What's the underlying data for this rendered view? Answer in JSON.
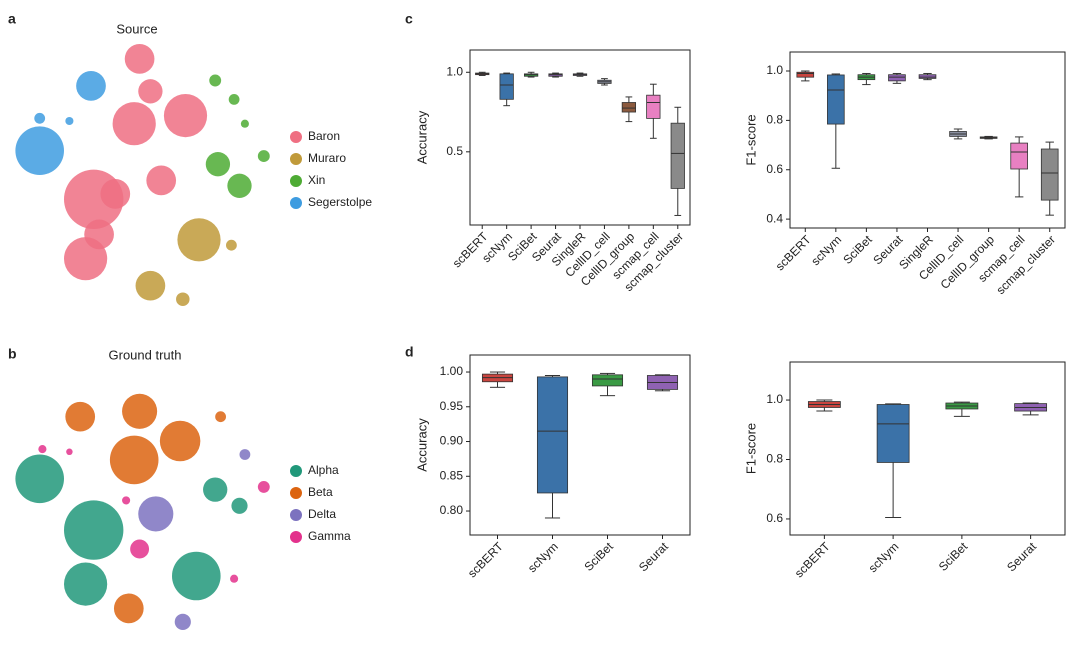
{
  "chart_data": [
    {
      "type": "scatter",
      "label": "a",
      "title": "Source",
      "xlim": [
        0,
        100
      ],
      "ylim": [
        0,
        100
      ],
      "series": [
        {
          "name": "Baron",
          "color": "#ef6f82",
          "x": [
            48,
            46,
            65,
            52,
            31,
            28,
            33,
            56,
            39
          ],
          "y": [
            93,
            69,
            72,
            81,
            41,
            19,
            28,
            48,
            43
          ],
          "sizes": [
            5.5,
            8,
            8,
            4.5,
            11,
            8,
            5.5,
            5.5,
            5.5
          ]
        },
        {
          "name": "Muraro",
          "color": "#c09a3a",
          "x": [
            70,
            52,
            64,
            82
          ],
          "y": [
            26,
            9,
            4,
            24
          ],
          "sizes": [
            8,
            5.5,
            2.5,
            2
          ]
        },
        {
          "name": "Xin",
          "color": "#4eab34",
          "x": [
            76,
            83,
            77,
            85,
            94,
            87
          ],
          "y": [
            85,
            78,
            54,
            46,
            57,
            69
          ],
          "sizes": [
            2.2,
            2,
            4.5,
            4.5,
            2.2,
            1.5
          ]
        },
        {
          "name": "Segerstolpe",
          "color": "#3e9ce0",
          "x": [
            11,
            30,
            11,
            22
          ],
          "y": [
            59,
            83,
            71,
            70
          ],
          "sizes": [
            9,
            5.5,
            2,
            1.5
          ]
        }
      ]
    },
    {
      "type": "scatter",
      "label": "b",
      "title": "Ground truth",
      "xlim": [
        0,
        100
      ],
      "ylim": [
        0,
        100
      ],
      "series": [
        {
          "name": "Alpha",
          "color": "#21987a",
          "x": [
            11,
            31,
            28,
            69,
            76,
            85
          ],
          "y": [
            56,
            37,
            17,
            20,
            52,
            46
          ],
          "sizes": [
            9,
            11,
            8,
            9,
            4.5,
            3
          ]
        },
        {
          "name": "Beta",
          "color": "#dc6410",
          "x": [
            26,
            48,
            46,
            63,
            78,
            44
          ],
          "y": [
            79,
            81,
            63,
            70,
            79,
            8
          ],
          "sizes": [
            5.5,
            6.5,
            9,
            7.5,
            2,
            5.5
          ]
        },
        {
          "name": "Delta",
          "color": "#7c72bf",
          "x": [
            54,
            87,
            64
          ],
          "y": [
            43,
            65,
            3
          ],
          "sizes": [
            6.5,
            2,
            3
          ]
        },
        {
          "name": "Gamma",
          "color": "#e3318c",
          "x": [
            48,
            94,
            12,
            83,
            43,
            22
          ],
          "y": [
            30,
            53,
            67,
            19,
            48,
            66
          ],
          "sizes": [
            3.5,
            2.2,
            1.5,
            1.5,
            1.5,
            1.2
          ]
        }
      ]
    },
    {
      "type": "box",
      "label": "c",
      "ylabel": "Accuracy",
      "ylim": [
        0.04,
        1.14
      ],
      "yticks": [
        0.5,
        {
          "value": 1,
          "label": "1.0"
        }
      ],
      "categories": [
        "scBERT",
        "scNym",
        "SciBet",
        "Seurat",
        "SingleR",
        "CellID_cell",
        "CellID_group",
        "scmap_cell",
        "scmap_cluster"
      ],
      "colors": [
        "#c9453f",
        "#3b72a8",
        "#3a9a44",
        "#8f62b2",
        "#8f62b2",
        "#8a8fa0",
        "#8c5a3e",
        "#e880c2",
        "#8a8a8a"
      ],
      "boxes": [
        {
          "min": 0.98,
          "q1": 0.985,
          "median": 0.99,
          "q3": 0.995,
          "max": 1.0
        },
        {
          "min": 0.79,
          "q1": 0.83,
          "median": 0.92,
          "q3": 0.99,
          "max": 0.995
        },
        {
          "min": 0.97,
          "q1": 0.975,
          "median": 0.985,
          "q3": 0.99,
          "max": 1.0
        },
        {
          "min": 0.97,
          "q1": 0.975,
          "median": 0.985,
          "q3": 0.99,
          "max": 0.995
        },
        {
          "min": 0.975,
          "q1": 0.98,
          "median": 0.985,
          "q3": 0.99,
          "max": 0.995
        },
        {
          "min": 0.92,
          "q1": 0.93,
          "median": 0.94,
          "q3": 0.95,
          "max": 0.96
        },
        {
          "min": 0.69,
          "q1": 0.75,
          "median": 0.775,
          "q3": 0.81,
          "max": 0.845
        },
        {
          "min": 0.585,
          "q1": 0.71,
          "median": 0.81,
          "q3": 0.856,
          "max": 0.925
        },
        {
          "min": 0.1,
          "q1": 0.27,
          "median": 0.49,
          "q3": 0.68,
          "max": 0.78
        }
      ]
    },
    {
      "type": "box",
      "ylabel": "F1-score",
      "ylim": [
        0.364,
        1.077
      ],
      "yticks": [
        0.4,
        0.6,
        0.8,
        {
          "value": 1,
          "label": "1.0"
        }
      ],
      "categories": [
        "scBERT",
        "scNym",
        "SciBet",
        "Seurat",
        "SingleR",
        "CellID_cell",
        "CellID_group",
        "scmap_cell",
        "scmap_cluster"
      ],
      "colors": [
        "#c9453f",
        "#3b72a8",
        "#3a9a44",
        "#8f62b2",
        "#8f62b2",
        "#8a8fa0",
        "#8c5a3e",
        "#e880c2",
        "#8a8a8a"
      ],
      "boxes": [
        {
          "min": 0.96,
          "q1": 0.975,
          "median": 0.99,
          "q3": 0.995,
          "max": 1.0
        },
        {
          "min": 0.606,
          "q1": 0.785,
          "median": 0.923,
          "q3": 0.984,
          "max": 0.988
        },
        {
          "min": 0.945,
          "q1": 0.965,
          "median": 0.975,
          "q3": 0.985,
          "max": 0.99
        },
        {
          "min": 0.95,
          "q1": 0.96,
          "median": 0.975,
          "q3": 0.985,
          "max": 0.99
        },
        {
          "min": 0.965,
          "q1": 0.97,
          "median": 0.975,
          "q3": 0.985,
          "max": 0.99
        },
        {
          "min": 0.725,
          "q1": 0.735,
          "median": 0.745,
          "q3": 0.755,
          "max": 0.765
        },
        {
          "min": 0.725,
          "q1": 0.727,
          "median": 0.73,
          "q3": 0.733,
          "max": 0.735
        },
        {
          "min": 0.49,
          "q1": 0.603,
          "median": 0.672,
          "q3": 0.708,
          "max": 0.733
        },
        {
          "min": 0.416,
          "q1": 0.477,
          "median": 0.587,
          "q3": 0.684,
          "max": 0.712
        }
      ]
    },
    {
      "type": "box",
      "label": "d",
      "ylabel": "Accuracy",
      "ylim": [
        0.7655,
        1.0245
      ],
      "yticks": [
        {
          "value": 0.8,
          "label": "0.80"
        },
        0.85,
        {
          "value": 0.9,
          "label": "0.90"
        },
        0.95,
        {
          "value": 1,
          "label": "1.00"
        }
      ],
      "categories": [
        "scBERT",
        "scNym",
        "SciBet",
        "Seurat"
      ],
      "colors": [
        "#c9453f",
        "#3b72a8",
        "#3a9a44",
        "#8f62b2"
      ],
      "boxes": [
        {
          "min": 0.978,
          "q1": 0.986,
          "median": 0.992,
          "q3": 0.997,
          "max": 1.0
        },
        {
          "min": 0.79,
          "q1": 0.826,
          "median": 0.915,
          "q3": 0.993,
          "max": 0.995
        },
        {
          "min": 0.966,
          "q1": 0.98,
          "median": 0.99,
          "q3": 0.996,
          "max": 0.998
        },
        {
          "min": 0.973,
          "q1": 0.975,
          "median": 0.985,
          "q3": 0.995,
          "max": 0.996
        }
      ]
    },
    {
      "type": "box",
      "ylabel": "F1-score",
      "ylim": [
        0.546,
        1.128
      ],
      "yticks": [
        0.6,
        0.8,
        {
          "value": 1,
          "label": "1.0"
        }
      ],
      "categories": [
        "scBERT",
        "scNym",
        "SciBet",
        "Seurat"
      ],
      "colors": [
        "#c9453f",
        "#3b72a8",
        "#3a9a44",
        "#8f62b2"
      ],
      "boxes": [
        {
          "min": 0.963,
          "q1": 0.975,
          "median": 0.985,
          "q3": 0.995,
          "max": 1.0
        },
        {
          "min": 0.605,
          "q1": 0.79,
          "median": 0.92,
          "q3": 0.985,
          "max": 0.987
        },
        {
          "min": 0.945,
          "q1": 0.97,
          "median": 0.98,
          "q3": 0.99,
          "max": 0.993
        },
        {
          "min": 0.95,
          "q1": 0.963,
          "median": 0.975,
          "q3": 0.988,
          "max": 0.99
        }
      ]
    }
  ]
}
